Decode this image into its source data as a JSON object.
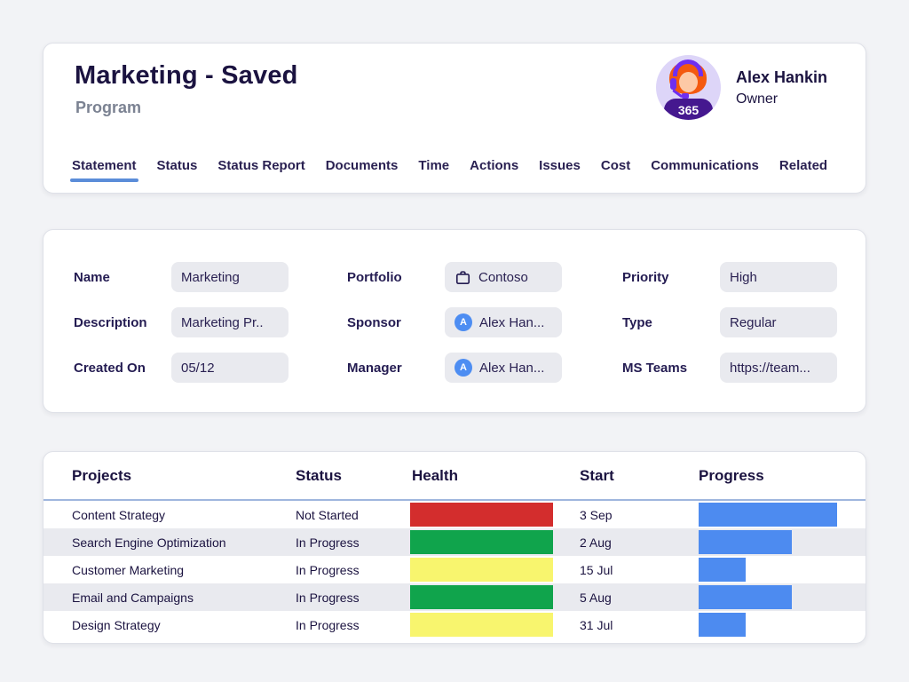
{
  "colors": {
    "accent_underline": "#5b8dd9",
    "health_red": "#d32d2d",
    "health_green": "#10a44c",
    "health_yellow": "#f8f56e",
    "progress_blue": "#4d8bf0"
  },
  "header": {
    "title": "Marketing - Saved",
    "subtitle": "Program",
    "owner": {
      "name": "Alex Hankin",
      "role": "Owner",
      "badge": "365"
    },
    "tabs": [
      {
        "label": "Statement",
        "active": true
      },
      {
        "label": "Status",
        "active": false
      },
      {
        "label": "Status Report",
        "active": false
      },
      {
        "label": "Documents",
        "active": false
      },
      {
        "label": "Time",
        "active": false
      },
      {
        "label": "Actions",
        "active": false
      },
      {
        "label": "Issues",
        "active": false
      },
      {
        "label": "Cost",
        "active": false
      },
      {
        "label": "Communications",
        "active": false
      },
      {
        "label": "Related",
        "active": false
      }
    ]
  },
  "form": {
    "fields": [
      {
        "label": "Name",
        "value": "Marketing",
        "icon": "none",
        "initial": ""
      },
      {
        "label": "Portfolio",
        "value": "Contoso",
        "icon": "briefcase",
        "initial": ""
      },
      {
        "label": "Priority",
        "value": "High",
        "icon": "none",
        "initial": ""
      },
      {
        "label": "Description",
        "value": "Marketing Pr..",
        "icon": "none",
        "initial": ""
      },
      {
        "label": "Sponsor",
        "value": "Alex Han...",
        "icon": "person",
        "initial": "A"
      },
      {
        "label": "Type",
        "value": "Regular",
        "icon": "none",
        "initial": ""
      },
      {
        "label": "Created On",
        "value": "05/12",
        "icon": "none",
        "initial": ""
      },
      {
        "label": "Manager",
        "value": "Alex Han...",
        "icon": "person",
        "initial": "A"
      },
      {
        "label": "MS Teams",
        "value": "https://team...",
        "icon": "none",
        "initial": ""
      }
    ]
  },
  "table": {
    "columns": [
      "Projects",
      "Status",
      "Health",
      "Start",
      "Progress"
    ],
    "rows": [
      {
        "project": "Content Strategy",
        "status": "Not Started",
        "health": "red",
        "start": "3 Sep",
        "progress_pct": 82
      },
      {
        "project": "Search Engine Optimization",
        "status": "In Progress",
        "health": "green",
        "start": "2 Aug",
        "progress_pct": 55
      },
      {
        "project": "Customer Marketing",
        "status": "In Progress",
        "health": "yellow",
        "start": "15 Jul",
        "progress_pct": 28
      },
      {
        "project": "Email and Campaigns",
        "status": "In Progress",
        "health": "green",
        "start": "5 Aug",
        "progress_pct": 55
      },
      {
        "project": "Design Strategy",
        "status": "In Progress",
        "health": "yellow",
        "start": "31 Jul",
        "progress_pct": 28
      }
    ]
  }
}
